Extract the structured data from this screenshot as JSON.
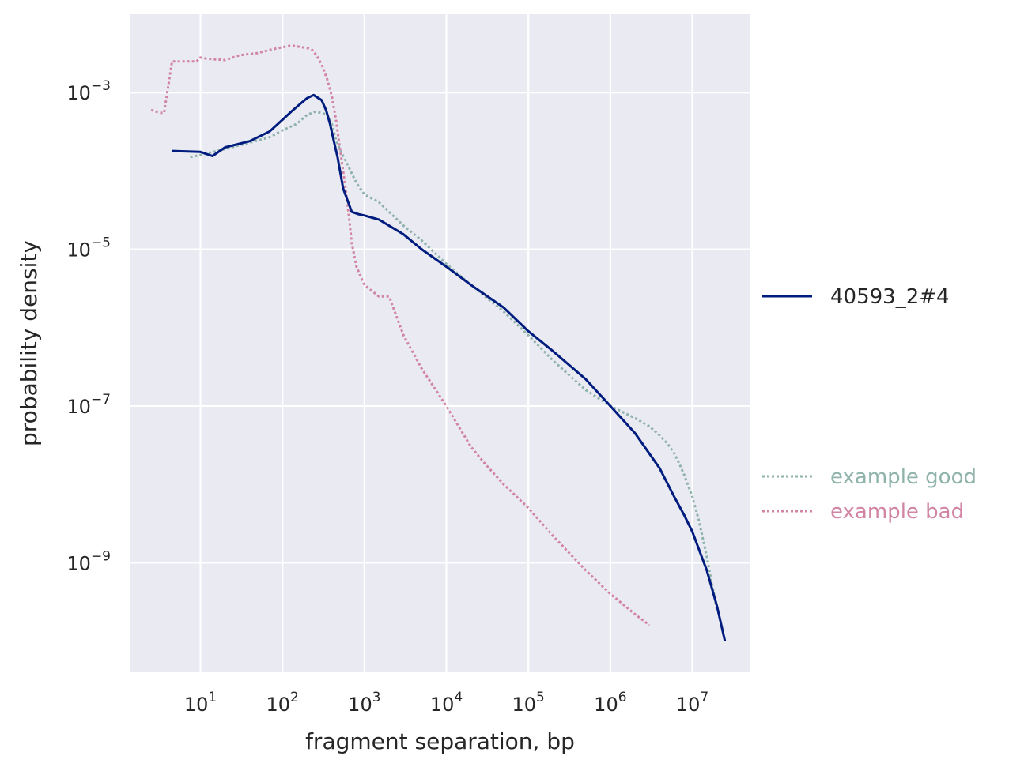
{
  "chart_data": {
    "type": "line",
    "title": "",
    "xlabel": "fragment separation, bp",
    "ylabel": "probability density",
    "xscale": "log",
    "yscale": "log",
    "xlim": [
      1.4,
      50000000
    ],
    "ylim": [
      4e-11,
      0.01
    ],
    "grid": true,
    "legend_position": "right",
    "x_ticks": [
      {
        "value": 10,
        "base": "10",
        "exp": "1"
      },
      {
        "value": 100,
        "base": "10",
        "exp": "2"
      },
      {
        "value": 1000,
        "base": "10",
        "exp": "3"
      },
      {
        "value": 10000,
        "base": "10",
        "exp": "4"
      },
      {
        "value": 100000,
        "base": "10",
        "exp": "5"
      },
      {
        "value": 1000000,
        "base": "10",
        "exp": "6"
      },
      {
        "value": 10000000,
        "base": "10",
        "exp": "7"
      }
    ],
    "y_ticks": [
      {
        "value": 0.001,
        "base": "10",
        "exp": "−3"
      },
      {
        "value": 1e-05,
        "base": "10",
        "exp": "−5"
      },
      {
        "value": 1e-07,
        "base": "10",
        "exp": "−7"
      },
      {
        "value": 1e-09,
        "base": "10",
        "exp": "−9"
      }
    ],
    "series": [
      {
        "name": "40593_2#4",
        "color": "#001c7f",
        "style": "solid",
        "x": [
          4.5,
          10,
          14,
          20,
          40,
          70,
          100,
          130,
          160,
          200,
          240,
          270,
          300,
          340,
          380,
          420,
          470,
          550,
          700,
          850,
          1000,
          1500,
          2000,
          3000,
          5000,
          10000,
          20000,
          50000,
          100000,
          200000,
          500000,
          1000000,
          2000000,
          4000000,
          6000000,
          8000000,
          10000000,
          15000000,
          20000000,
          25000000
        ],
        "y": [
          0.00018,
          0.000175,
          0.000155,
          0.0002,
          0.00024,
          0.00032,
          0.00045,
          0.00058,
          0.0007,
          0.00085,
          0.00093,
          0.00086,
          0.0008,
          0.0006,
          0.0004,
          0.00025,
          0.00015,
          6e-05,
          3e-05,
          2.8e-05,
          2.7e-05,
          2.4e-05,
          2e-05,
          1.55e-05,
          1e-05,
          6e-06,
          3.5e-06,
          1.8e-06,
          9e-07,
          5e-07,
          2.2e-07,
          1e-07,
          4.5e-08,
          1.6e-08,
          7e-09,
          4e-09,
          2.5e-09,
          8e-10,
          2.8e-10,
          1e-10
        ]
      },
      {
        "name": "example good",
        "color": "#8fb3ab",
        "style": "dotted",
        "x": [
          7.5,
          10,
          20,
          40,
          70,
          100,
          150,
          200,
          250,
          300,
          350,
          400,
          450,
          500,
          600,
          800,
          1000,
          1500,
          2000,
          3000,
          5000,
          10000,
          20000,
          50000,
          100000,
          200000,
          500000,
          1000000,
          2000000,
          3000000,
          4000000,
          5000000,
          6000000,
          7000000,
          8000000,
          10000000,
          12000000,
          15000000,
          20000000
        ],
        "y": [
          0.00015,
          0.00016,
          0.00019,
          0.00023,
          0.00027,
          0.00033,
          0.0004,
          0.00052,
          0.00057,
          0.00055,
          0.00052,
          0.0004,
          0.00025,
          0.00019,
          0.00013,
          7e-05,
          5e-05,
          4e-05,
          3e-05,
          2e-05,
          1.3e-05,
          6.5e-06,
          3.5e-06,
          1.6e-06,
          8e-07,
          3.8e-07,
          1.6e-07,
          1e-07,
          7e-08,
          5.5e-08,
          4.2e-08,
          3.3e-08,
          2.5e-08,
          1.8e-08,
          1.3e-08,
          7e-09,
          3.5e-09,
          1.2e-09,
          2.5e-10
        ]
      },
      {
        "name": "example bad",
        "color": "#d184a4",
        "style": "dotted",
        "x": [
          2.5,
          3.2,
          3.6,
          4.5,
          9,
          10,
          12,
          20,
          30,
          50,
          70,
          100,
          130,
          170,
          200,
          230,
          260,
          300,
          350,
          400,
          450,
          500,
          550,
          600,
          650,
          700,
          800,
          900,
          1000,
          1500,
          2000,
          3000,
          5000,
          10000,
          20000,
          30000,
          50000,
          100000,
          200000,
          500000,
          1000000,
          2000000,
          3000000
        ],
        "y": [
          0.0006,
          0.00055,
          0.00055,
          0.0025,
          0.0025,
          0.0028,
          0.0027,
          0.0026,
          0.003,
          0.0032,
          0.0035,
          0.0038,
          0.004,
          0.0038,
          0.0037,
          0.0035,
          0.003,
          0.0023,
          0.0015,
          0.0009,
          0.00045,
          0.0002,
          0.0001,
          5e-05,
          2.5e-05,
          1.2e-05,
          6e-06,
          4.5e-06,
          3.5e-06,
          2.5e-06,
          2.5e-06,
          8e-07,
          3e-07,
          1e-07,
          3e-08,
          1.8e-08,
          1e-08,
          5e-09,
          2.2e-09,
          8e-10,
          4e-10,
          2.2e-10,
          1.6e-10
        ]
      }
    ]
  }
}
